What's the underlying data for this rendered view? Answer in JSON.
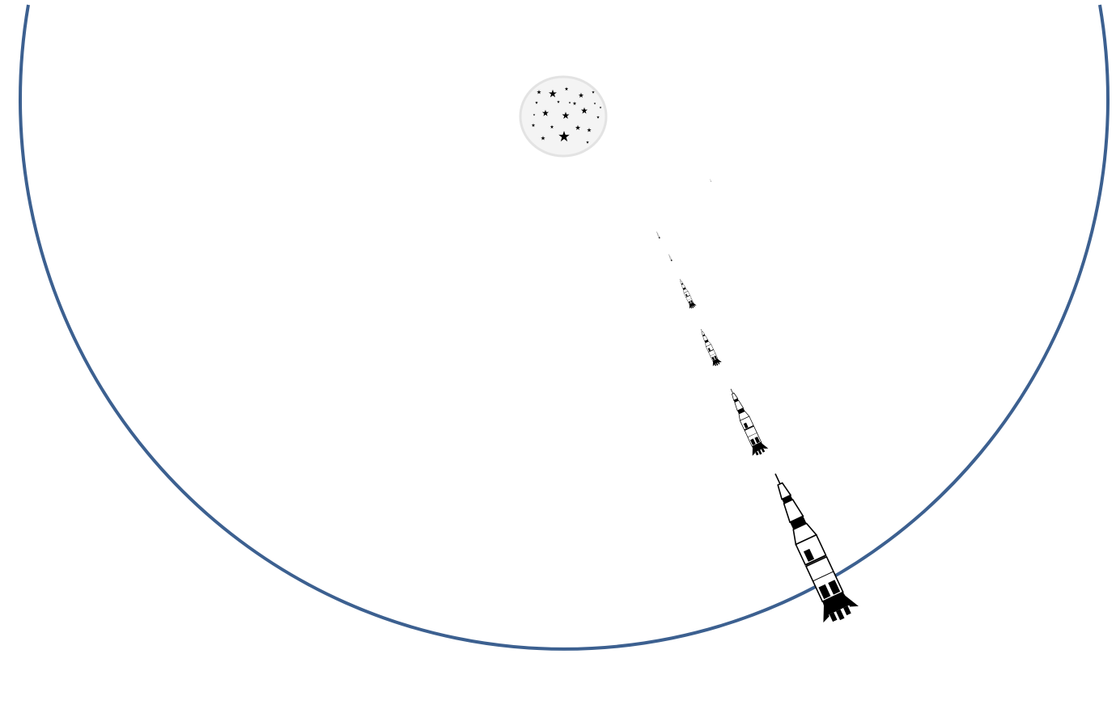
{
  "scene": {
    "boundary_color": "#3c6090",
    "star_cluster": {
      "icon": "stars-icon",
      "star_color": "#000000",
      "disc_color": "#f4f4f4",
      "rim_color": "#e3e3e3"
    },
    "rocket": {
      "icon": "rocket-icon",
      "ink_color": "#000000",
      "body_color": "#ffffff",
      "trail_count": 7
    }
  }
}
